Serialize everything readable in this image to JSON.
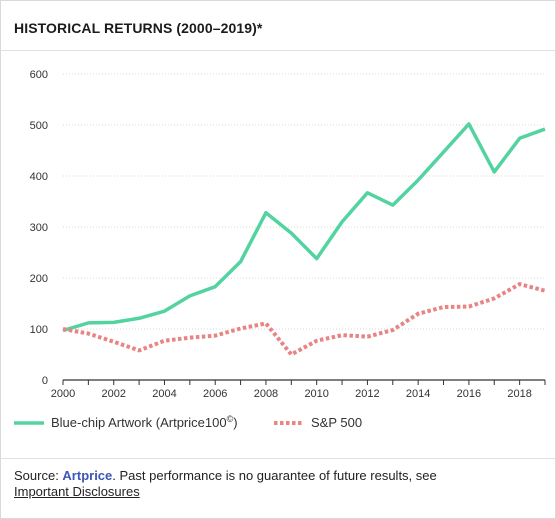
{
  "title": "HISTORICAL RETURNS (2000–2019)*",
  "footer": {
    "prefix": "Source: ",
    "brand_link": "Artprice",
    "middle": ". Past performance is no guarantee of future results, see",
    "disclosures_link": "Important Disclosures"
  },
  "colors": {
    "artwork": "#52d3a0",
    "sp500": "#e88484",
    "grid": "#d8d8d8",
    "brand_link": "#3a56b8"
  },
  "chart_data": {
    "type": "line",
    "x": [
      2000,
      2001,
      2002,
      2003,
      2004,
      2005,
      2006,
      2007,
      2008,
      2009,
      2010,
      2011,
      2012,
      2013,
      2014,
      2015,
      2016,
      2017,
      2018,
      2019
    ],
    "xticks": [
      "2000",
      "2002",
      "2004",
      "2006",
      "2008",
      "2010",
      "2012",
      "2014",
      "2016",
      "2018"
    ],
    "yticks": [
      "0",
      "100",
      "200",
      "300",
      "400",
      "500",
      "600"
    ],
    "ylim": [
      0,
      600
    ],
    "xlim": [
      2000,
      2019
    ],
    "grid": true,
    "legend_position": "bottom",
    "series": [
      {
        "name": "Blue-chip Artwork (Artprice100",
        "name_superscript": "©",
        "name_suffix": ")",
        "style": "solid",
        "values": [
          97,
          112,
          113,
          121,
          135,
          165,
          183,
          232,
          328,
          288,
          238,
          310,
          367,
          343,
          392,
          447,
          502,
          408,
          474,
          492
        ]
      },
      {
        "name": "S&P 500",
        "style": "dashed",
        "values": [
          100,
          91,
          75,
          58,
          77,
          83,
          87,
          101,
          111,
          50,
          77,
          88,
          85,
          98,
          130,
          143,
          144,
          160,
          188,
          175
        ]
      }
    ]
  }
}
